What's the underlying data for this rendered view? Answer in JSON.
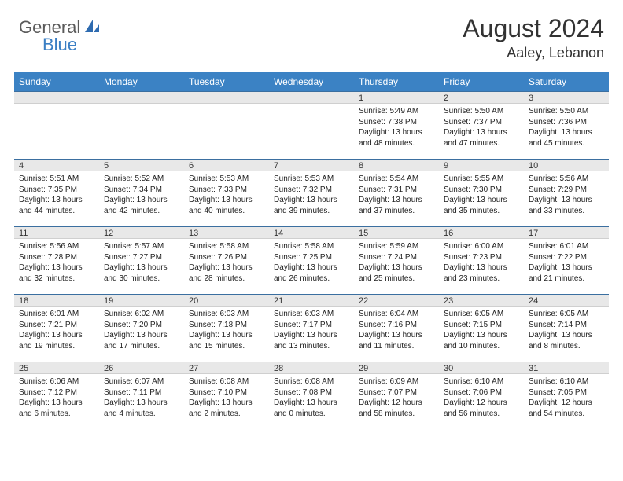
{
  "logo": {
    "textA": "General",
    "textB": "Blue"
  },
  "title": "August 2024",
  "location": "Aaley, Lebanon",
  "colors": {
    "header_bg": "#3b82c4",
    "header_fg": "#ffffff",
    "daynum_bg": "#e8e8e8",
    "border_top": "#3b6fa0",
    "logo_gray": "#5a5a5a",
    "logo_blue": "#3b7fc4"
  },
  "weekdays": [
    "Sunday",
    "Monday",
    "Tuesday",
    "Wednesday",
    "Thursday",
    "Friday",
    "Saturday"
  ],
  "weeks": [
    [
      null,
      null,
      null,
      null,
      {
        "n": "1",
        "sr": "Sunrise: 5:49 AM",
        "ss": "Sunset: 7:38 PM",
        "dl": "Daylight: 13 hours and 48 minutes."
      },
      {
        "n": "2",
        "sr": "Sunrise: 5:50 AM",
        "ss": "Sunset: 7:37 PM",
        "dl": "Daylight: 13 hours and 47 minutes."
      },
      {
        "n": "3",
        "sr": "Sunrise: 5:50 AM",
        "ss": "Sunset: 7:36 PM",
        "dl": "Daylight: 13 hours and 45 minutes."
      }
    ],
    [
      {
        "n": "4",
        "sr": "Sunrise: 5:51 AM",
        "ss": "Sunset: 7:35 PM",
        "dl": "Daylight: 13 hours and 44 minutes."
      },
      {
        "n": "5",
        "sr": "Sunrise: 5:52 AM",
        "ss": "Sunset: 7:34 PM",
        "dl": "Daylight: 13 hours and 42 minutes."
      },
      {
        "n": "6",
        "sr": "Sunrise: 5:53 AM",
        "ss": "Sunset: 7:33 PM",
        "dl": "Daylight: 13 hours and 40 minutes."
      },
      {
        "n": "7",
        "sr": "Sunrise: 5:53 AM",
        "ss": "Sunset: 7:32 PM",
        "dl": "Daylight: 13 hours and 39 minutes."
      },
      {
        "n": "8",
        "sr": "Sunrise: 5:54 AM",
        "ss": "Sunset: 7:31 PM",
        "dl": "Daylight: 13 hours and 37 minutes."
      },
      {
        "n": "9",
        "sr": "Sunrise: 5:55 AM",
        "ss": "Sunset: 7:30 PM",
        "dl": "Daylight: 13 hours and 35 minutes."
      },
      {
        "n": "10",
        "sr": "Sunrise: 5:56 AM",
        "ss": "Sunset: 7:29 PM",
        "dl": "Daylight: 13 hours and 33 minutes."
      }
    ],
    [
      {
        "n": "11",
        "sr": "Sunrise: 5:56 AM",
        "ss": "Sunset: 7:28 PM",
        "dl": "Daylight: 13 hours and 32 minutes."
      },
      {
        "n": "12",
        "sr": "Sunrise: 5:57 AM",
        "ss": "Sunset: 7:27 PM",
        "dl": "Daylight: 13 hours and 30 minutes."
      },
      {
        "n": "13",
        "sr": "Sunrise: 5:58 AM",
        "ss": "Sunset: 7:26 PM",
        "dl": "Daylight: 13 hours and 28 minutes."
      },
      {
        "n": "14",
        "sr": "Sunrise: 5:58 AM",
        "ss": "Sunset: 7:25 PM",
        "dl": "Daylight: 13 hours and 26 minutes."
      },
      {
        "n": "15",
        "sr": "Sunrise: 5:59 AM",
        "ss": "Sunset: 7:24 PM",
        "dl": "Daylight: 13 hours and 25 minutes."
      },
      {
        "n": "16",
        "sr": "Sunrise: 6:00 AM",
        "ss": "Sunset: 7:23 PM",
        "dl": "Daylight: 13 hours and 23 minutes."
      },
      {
        "n": "17",
        "sr": "Sunrise: 6:01 AM",
        "ss": "Sunset: 7:22 PM",
        "dl": "Daylight: 13 hours and 21 minutes."
      }
    ],
    [
      {
        "n": "18",
        "sr": "Sunrise: 6:01 AM",
        "ss": "Sunset: 7:21 PM",
        "dl": "Daylight: 13 hours and 19 minutes."
      },
      {
        "n": "19",
        "sr": "Sunrise: 6:02 AM",
        "ss": "Sunset: 7:20 PM",
        "dl": "Daylight: 13 hours and 17 minutes."
      },
      {
        "n": "20",
        "sr": "Sunrise: 6:03 AM",
        "ss": "Sunset: 7:18 PM",
        "dl": "Daylight: 13 hours and 15 minutes."
      },
      {
        "n": "21",
        "sr": "Sunrise: 6:03 AM",
        "ss": "Sunset: 7:17 PM",
        "dl": "Daylight: 13 hours and 13 minutes."
      },
      {
        "n": "22",
        "sr": "Sunrise: 6:04 AM",
        "ss": "Sunset: 7:16 PM",
        "dl": "Daylight: 13 hours and 11 minutes."
      },
      {
        "n": "23",
        "sr": "Sunrise: 6:05 AM",
        "ss": "Sunset: 7:15 PM",
        "dl": "Daylight: 13 hours and 10 minutes."
      },
      {
        "n": "24",
        "sr": "Sunrise: 6:05 AM",
        "ss": "Sunset: 7:14 PM",
        "dl": "Daylight: 13 hours and 8 minutes."
      }
    ],
    [
      {
        "n": "25",
        "sr": "Sunrise: 6:06 AM",
        "ss": "Sunset: 7:12 PM",
        "dl": "Daylight: 13 hours and 6 minutes."
      },
      {
        "n": "26",
        "sr": "Sunrise: 6:07 AM",
        "ss": "Sunset: 7:11 PM",
        "dl": "Daylight: 13 hours and 4 minutes."
      },
      {
        "n": "27",
        "sr": "Sunrise: 6:08 AM",
        "ss": "Sunset: 7:10 PM",
        "dl": "Daylight: 13 hours and 2 minutes."
      },
      {
        "n": "28",
        "sr": "Sunrise: 6:08 AM",
        "ss": "Sunset: 7:08 PM",
        "dl": "Daylight: 13 hours and 0 minutes."
      },
      {
        "n": "29",
        "sr": "Sunrise: 6:09 AM",
        "ss": "Sunset: 7:07 PM",
        "dl": "Daylight: 12 hours and 58 minutes."
      },
      {
        "n": "30",
        "sr": "Sunrise: 6:10 AM",
        "ss": "Sunset: 7:06 PM",
        "dl": "Daylight: 12 hours and 56 minutes."
      },
      {
        "n": "31",
        "sr": "Sunrise: 6:10 AM",
        "ss": "Sunset: 7:05 PM",
        "dl": "Daylight: 12 hours and 54 minutes."
      }
    ]
  ]
}
